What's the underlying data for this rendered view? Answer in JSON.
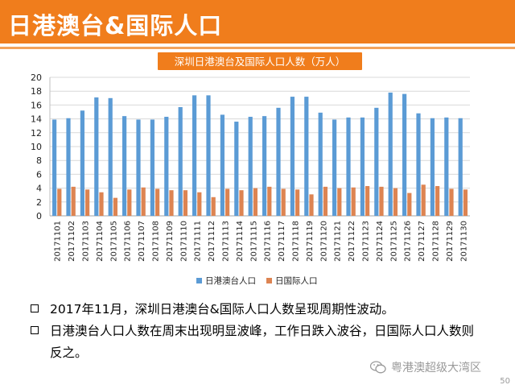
{
  "slide": {
    "title": "日港澳台&国际人口",
    "page_number": "50",
    "watermark": "粤港澳超级大湾区"
  },
  "bullets": {
    "line1": "2017年11月，深圳日港澳台&国际人口人数呈现周期性波动。",
    "line2a": "日港澳台人口人数在周末出现明显波峰，工作日跌入波谷，日国际人口人数则",
    "line2b": "反之。"
  },
  "colors": {
    "header": "#f07d1c",
    "series1": "#5b9bd5",
    "series2": "#dd8452",
    "chart_title_bg": "#f07d1c"
  },
  "chart_data": {
    "type": "bar",
    "title": "深圳日港澳台及国际人口人数（万人）",
    "xlabel": "",
    "ylabel": "",
    "ylim": [
      0,
      20
    ],
    "yticks": [
      0,
      2,
      4,
      6,
      8,
      10,
      12,
      14,
      16,
      18,
      20
    ],
    "categories": [
      "20171101",
      "20171102",
      "20171103",
      "20171104",
      "20171105",
      "20171106",
      "20171107",
      "20171108",
      "20171109",
      "20171110",
      "20171111",
      "20171112",
      "20171113",
      "20171114",
      "20171115",
      "20171116",
      "20171117",
      "20171118",
      "20171119",
      "20171120",
      "20171121",
      "20171122",
      "20171123",
      "20171124",
      "20171125",
      "20171126",
      "20171127",
      "20171128",
      "20171129",
      "20171130"
    ],
    "series": [
      {
        "name": "日港澳台人口",
        "values": [
          13.9,
          14.1,
          15.2,
          17.1,
          17.0,
          14.4,
          13.9,
          13.9,
          14.3,
          15.7,
          17.4,
          17.4,
          14.6,
          13.6,
          14.3,
          14.4,
          15.6,
          17.2,
          17.2,
          14.9,
          13.9,
          14.2,
          14.2,
          15.6,
          17.8,
          17.6,
          14.8,
          14.1,
          14.2,
          14.1
        ]
      },
      {
        "name": "日国际人口",
        "values": [
          3.9,
          4.2,
          3.8,
          3.4,
          2.6,
          3.8,
          4.1,
          3.9,
          3.7,
          3.7,
          3.4,
          2.7,
          3.9,
          3.7,
          4.0,
          4.2,
          3.9,
          3.8,
          3.1,
          4.2,
          4.0,
          4.1,
          4.3,
          4.2,
          4.0,
          3.3,
          4.5,
          4.3,
          3.9,
          3.8
        ]
      }
    ],
    "legend_position": "bottom"
  }
}
